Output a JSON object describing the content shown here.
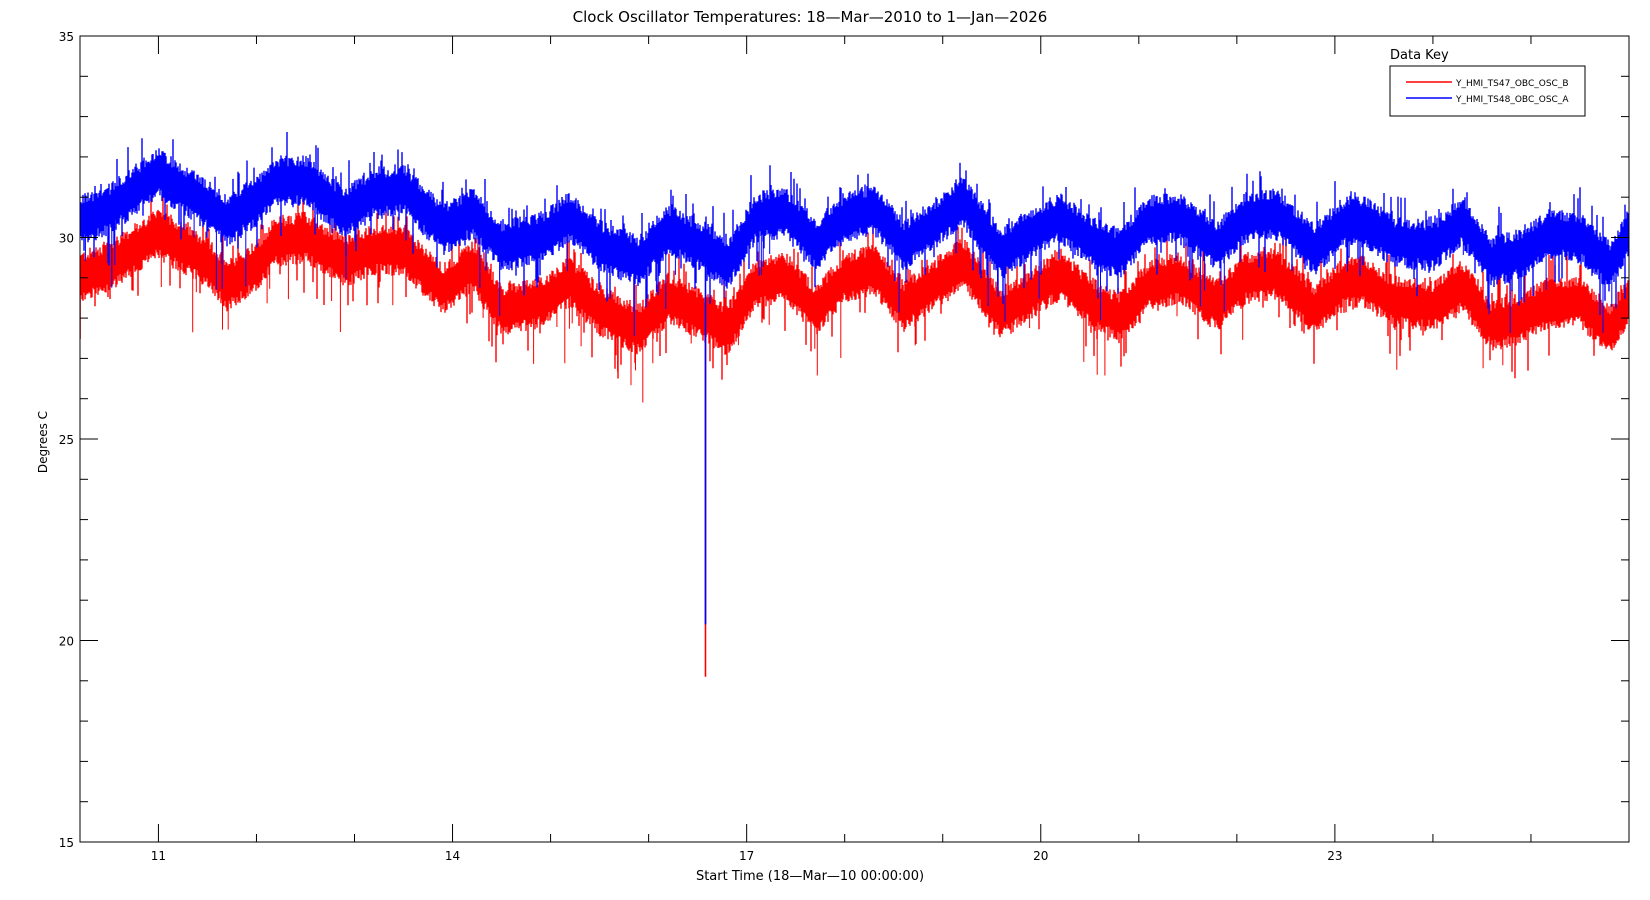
{
  "chart_data": {
    "type": "line",
    "title": "Clock Oscillator Temperatures: 18—Mar—2010 to 1—Jan—2026",
    "xlabel": "Start Time (18—Mar—10 00:00:00)",
    "ylabel": "Degrees C",
    "xlim": [
      10.2,
      26.0
    ],
    "ylim": [
      15,
      35
    ],
    "x_ticks": [
      11,
      14,
      17,
      20,
      23
    ],
    "y_ticks": [
      15,
      20,
      25,
      30,
      35
    ],
    "grid": false,
    "legend_title": "Data Key",
    "legend_position": "top-right",
    "series": [
      {
        "name": "Y_HMI_TS47_OBC_OSC_B",
        "color": "#ff0000",
        "center": [
          [
            10.2,
            29.0
          ],
          [
            10.5,
            29.3
          ],
          [
            11.0,
            30.1
          ],
          [
            11.5,
            29.4
          ],
          [
            11.7,
            28.8
          ],
          [
            12.0,
            29.3
          ],
          [
            12.2,
            29.9
          ],
          [
            12.5,
            30.0
          ],
          [
            12.9,
            29.4
          ],
          [
            13.2,
            29.7
          ],
          [
            13.5,
            29.7
          ],
          [
            13.9,
            28.7
          ],
          [
            14.2,
            29.3
          ],
          [
            14.5,
            28.2
          ],
          [
            14.9,
            28.4
          ],
          [
            15.2,
            28.9
          ],
          [
            15.5,
            28.2
          ],
          [
            15.9,
            27.7
          ],
          [
            16.2,
            28.5
          ],
          [
            16.6,
            28.0
          ],
          [
            16.8,
            27.7
          ],
          [
            17.1,
            28.9
          ],
          [
            17.4,
            29.0
          ],
          [
            17.7,
            28.2
          ],
          [
            18.0,
            29.0
          ],
          [
            18.3,
            29.2
          ],
          [
            18.6,
            28.3
          ],
          [
            18.9,
            28.8
          ],
          [
            19.2,
            29.4
          ],
          [
            19.6,
            28.1
          ],
          [
            19.9,
            28.6
          ],
          [
            20.2,
            29.1
          ],
          [
            20.5,
            28.4
          ],
          [
            20.8,
            28.0
          ],
          [
            21.1,
            28.8
          ],
          [
            21.4,
            29.0
          ],
          [
            21.8,
            28.3
          ],
          [
            22.1,
            29.0
          ],
          [
            22.4,
            29.1
          ],
          [
            22.8,
            28.2
          ],
          [
            23.1,
            28.9
          ],
          [
            23.3,
            28.9
          ],
          [
            23.6,
            28.4
          ],
          [
            24.0,
            28.3
          ],
          [
            24.3,
            28.8
          ],
          [
            24.6,
            27.8
          ],
          [
            24.9,
            28.0
          ],
          [
            25.2,
            28.4
          ],
          [
            25.5,
            28.4
          ],
          [
            25.8,
            27.7
          ],
          [
            26.0,
            28.4
          ]
        ],
        "spike": {
          "x": 16.58,
          "y_min": 19.1
        }
      },
      {
        "name": "Y_HMI_TS48_OBC_OSC_A",
        "color": "#0000ff",
        "center": [
          [
            10.2,
            30.4
          ],
          [
            10.5,
            30.7
          ],
          [
            11.0,
            31.6
          ],
          [
            11.5,
            30.8
          ],
          [
            11.7,
            30.4
          ],
          [
            12.0,
            30.9
          ],
          [
            12.2,
            31.4
          ],
          [
            12.5,
            31.4
          ],
          [
            12.9,
            30.6
          ],
          [
            13.2,
            31.1
          ],
          [
            13.5,
            31.2
          ],
          [
            13.9,
            30.2
          ],
          [
            14.2,
            30.6
          ],
          [
            14.5,
            29.8
          ],
          [
            14.9,
            30.0
          ],
          [
            15.2,
            30.5
          ],
          [
            15.5,
            29.8
          ],
          [
            15.9,
            29.4
          ],
          [
            16.2,
            30.2
          ],
          [
            16.6,
            29.7
          ],
          [
            16.8,
            29.3
          ],
          [
            17.1,
            30.5
          ],
          [
            17.4,
            30.6
          ],
          [
            17.7,
            29.8
          ],
          [
            18.0,
            30.5
          ],
          [
            18.3,
            30.7
          ],
          [
            18.6,
            29.8
          ],
          [
            18.9,
            30.3
          ],
          [
            19.2,
            30.9
          ],
          [
            19.6,
            29.6
          ],
          [
            19.9,
            30.1
          ],
          [
            20.2,
            30.5
          ],
          [
            20.5,
            29.9
          ],
          [
            20.8,
            29.6
          ],
          [
            21.1,
            30.4
          ],
          [
            21.4,
            30.5
          ],
          [
            21.8,
            29.8
          ],
          [
            22.1,
            30.5
          ],
          [
            22.4,
            30.6
          ],
          [
            22.8,
            29.7
          ],
          [
            23.1,
            30.4
          ],
          [
            23.3,
            30.4
          ],
          [
            23.6,
            29.9
          ],
          [
            24.0,
            29.8
          ],
          [
            24.3,
            30.4
          ],
          [
            24.6,
            29.4
          ],
          [
            24.9,
            29.6
          ],
          [
            25.2,
            30.1
          ],
          [
            25.5,
            30.0
          ],
          [
            25.8,
            29.3
          ],
          [
            26.0,
            30.1
          ]
        ],
        "spike": {
          "x": 16.58,
          "y_min": 20.4
        }
      }
    ]
  }
}
